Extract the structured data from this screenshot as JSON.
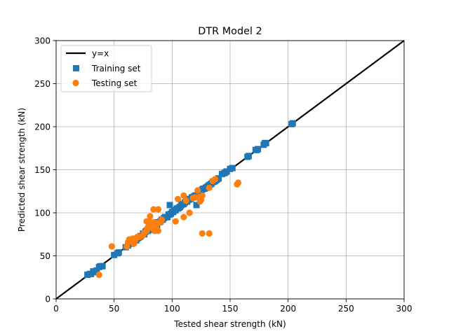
{
  "chart_data": {
    "type": "scatter",
    "title": "DTR Model 2",
    "xlabel": "Tested shear strength (kN)",
    "ylabel": "Predicted shear strength (kN)",
    "xlim": [
      0,
      300
    ],
    "ylim": [
      0,
      300
    ],
    "xticks": [
      0,
      50,
      100,
      150,
      200,
      250,
      300
    ],
    "yticks": [
      0,
      50,
      100,
      150,
      200,
      250,
      300
    ],
    "grid": true,
    "legend_position": "top-left",
    "reference_line": {
      "name": "y=x",
      "color": "#000000",
      "points": [
        [
          0,
          0
        ],
        [
          300,
          300
        ]
      ]
    },
    "series": [
      {
        "name": "Training set",
        "marker": "square",
        "color": "#1f77b4",
        "points": [
          [
            27,
            28
          ],
          [
            29,
            29
          ],
          [
            30,
            29
          ],
          [
            32,
            32
          ],
          [
            33,
            31
          ],
          [
            35,
            33
          ],
          [
            37,
            37
          ],
          [
            38,
            38
          ],
          [
            40,
            38
          ],
          [
            50,
            51
          ],
          [
            53,
            53
          ],
          [
            54,
            54
          ],
          [
            60,
            60
          ],
          [
            62,
            62
          ],
          [
            64,
            64
          ],
          [
            65,
            65
          ],
          [
            67,
            67
          ],
          [
            69,
            68
          ],
          [
            70,
            70
          ],
          [
            71,
            71
          ],
          [
            72,
            72
          ],
          [
            73,
            73
          ],
          [
            75,
            76
          ],
          [
            76,
            75
          ],
          [
            77,
            78
          ],
          [
            78,
            79
          ],
          [
            79,
            79
          ],
          [
            80,
            80
          ],
          [
            81,
            82
          ],
          [
            82,
            82
          ],
          [
            83,
            83
          ],
          [
            84,
            85
          ],
          [
            85,
            84
          ],
          [
            86,
            88
          ],
          [
            87,
            86
          ],
          [
            88,
            89
          ],
          [
            89,
            89
          ],
          [
            90,
            90
          ],
          [
            91,
            92
          ],
          [
            92,
            92
          ],
          [
            93,
            94
          ],
          [
            94,
            95
          ],
          [
            95,
            95
          ],
          [
            96,
            95
          ],
          [
            97,
            98
          ],
          [
            98,
            98
          ],
          [
            99,
            99
          ],
          [
            98,
            109
          ],
          [
            100,
            101
          ],
          [
            101,
            101
          ],
          [
            102,
            103
          ],
          [
            103,
            103
          ],
          [
            104,
            105
          ],
          [
            105,
            105
          ],
          [
            106,
            106
          ],
          [
            107,
            107
          ],
          [
            108,
            109
          ],
          [
            109,
            110
          ],
          [
            110,
            110
          ],
          [
            111,
            112
          ],
          [
            112,
            113
          ],
          [
            113,
            113
          ],
          [
            114,
            115
          ],
          [
            115,
            116
          ],
          [
            116,
            116
          ],
          [
            117,
            118
          ],
          [
            118,
            118
          ],
          [
            119,
            119
          ],
          [
            120,
            120
          ],
          [
            121,
            109
          ],
          [
            122,
            121
          ],
          [
            123,
            123
          ],
          [
            124,
            125
          ],
          [
            125,
            125
          ],
          [
            126,
            127
          ],
          [
            127,
            128
          ],
          [
            128,
            128
          ],
          [
            129,
            129
          ],
          [
            130,
            130
          ],
          [
            131,
            131
          ],
          [
            132,
            132
          ],
          [
            133,
            133
          ],
          [
            134,
            134
          ],
          [
            135,
            136
          ],
          [
            136,
            136
          ],
          [
            137,
            137
          ],
          [
            138,
            138
          ],
          [
            139,
            139
          ],
          [
            140,
            140
          ],
          [
            143,
            145
          ],
          [
            145,
            146
          ],
          [
            146,
            147
          ],
          [
            147,
            148
          ],
          [
            150,
            151
          ],
          [
            152,
            152
          ],
          [
            165,
            165
          ],
          [
            166,
            166
          ],
          [
            172,
            173
          ],
          [
            173,
            173
          ],
          [
            174,
            174
          ],
          [
            179,
            179
          ],
          [
            180,
            181
          ],
          [
            181,
            181
          ],
          [
            203,
            203
          ],
          [
            204,
            204
          ]
        ]
      },
      {
        "name": "Testing set",
        "marker": "circle",
        "color": "#ff7f0e",
        "points": [
          [
            37,
            28
          ],
          [
            48,
            61
          ],
          [
            61,
            61
          ],
          [
            62,
            66
          ],
          [
            63,
            69
          ],
          [
            65,
            67
          ],
          [
            66,
            70
          ],
          [
            67,
            64
          ],
          [
            68,
            68
          ],
          [
            70,
            72
          ],
          [
            72,
            72
          ],
          [
            75,
            74
          ],
          [
            76,
            77
          ],
          [
            78,
            79
          ],
          [
            78,
            90
          ],
          [
            79,
            83
          ],
          [
            80,
            90
          ],
          [
            81,
            96
          ],
          [
            82,
            87
          ],
          [
            83,
            82
          ],
          [
            84,
            89
          ],
          [
            84,
            104
          ],
          [
            85,
            79
          ],
          [
            86,
            84
          ],
          [
            87,
            88
          ],
          [
            88,
            79
          ],
          [
            88,
            104
          ],
          [
            90,
            89
          ],
          [
            91,
            92
          ],
          [
            103,
            90
          ],
          [
            105,
            116
          ],
          [
            110,
            95
          ],
          [
            110,
            120
          ],
          [
            112,
            114
          ],
          [
            115,
            100
          ],
          [
            118,
            117
          ],
          [
            120,
            118
          ],
          [
            122,
            126
          ],
          [
            123,
            118
          ],
          [
            124,
            113
          ],
          [
            125,
            115
          ],
          [
            126,
            120
          ],
          [
            126,
            76
          ],
          [
            132,
            76
          ],
          [
            132,
            129
          ],
          [
            135,
            137
          ],
          [
            137,
            139
          ],
          [
            156,
            133
          ],
          [
            157,
            135
          ]
        ]
      }
    ]
  }
}
